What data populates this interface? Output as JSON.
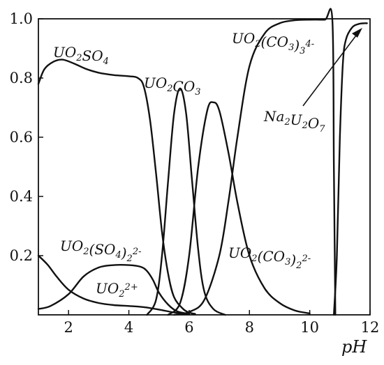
{
  "chart_data": {
    "type": "line",
    "title": "",
    "xlabel": "pH",
    "ylabel": "",
    "xlim": [
      1,
      12
    ],
    "ylim": [
      0,
      1.0
    ],
    "xticks": [
      "2",
      "4",
      "6",
      "8",
      "10",
      "12"
    ],
    "yticks": [
      "0.2",
      "0.4",
      "0.6",
      "0.8",
      "1.0"
    ],
    "grid": false,
    "series": [
      {
        "name": "UO2SO4",
        "x": [
          1.0,
          1.2,
          1.5,
          1.8,
          2.2,
          2.6,
          3.0,
          3.5,
          4.0,
          4.3,
          4.5,
          4.7,
          4.9,
          5.1,
          5.3,
          5.5,
          5.8,
          6.0,
          6.2
        ],
        "values": [
          0.78,
          0.83,
          0.855,
          0.862,
          0.848,
          0.83,
          0.818,
          0.81,
          0.806,
          0.8,
          0.77,
          0.66,
          0.48,
          0.28,
          0.14,
          0.06,
          0.02,
          0.008,
          0.003
        ]
      },
      {
        "name": "UO2(SO4)2 2-",
        "x": [
          1.0,
          1.4,
          2.0,
          2.5,
          3.0,
          3.5,
          4.0,
          4.4,
          4.6,
          4.8,
          5.0,
          5.3,
          5.6,
          6.0
        ],
        "values": [
          0.02,
          0.03,
          0.07,
          0.13,
          0.16,
          0.168,
          0.168,
          0.162,
          0.148,
          0.118,
          0.075,
          0.035,
          0.012,
          0.003
        ]
      },
      {
        "name": "UO2 2+",
        "x": [
          1.0,
          1.3,
          1.6,
          2.0,
          2.5,
          3.0,
          3.5,
          4.0,
          4.5,
          5.0,
          5.5,
          6.0
        ],
        "values": [
          0.2,
          0.17,
          0.13,
          0.085,
          0.055,
          0.04,
          0.033,
          0.03,
          0.026,
          0.018,
          0.008,
          0.002
        ]
      },
      {
        "name": "UO2CO3",
        "x": [
          4.6,
          4.9,
          5.1,
          5.3,
          5.5,
          5.7,
          5.9,
          6.1,
          6.3,
          6.5,
          6.8,
          7.2
        ],
        "values": [
          0.0,
          0.05,
          0.2,
          0.45,
          0.68,
          0.765,
          0.68,
          0.45,
          0.22,
          0.08,
          0.02,
          0.0
        ]
      },
      {
        "name": "UO2(CO3)2 2-",
        "x": [
          5.3,
          5.7,
          6.0,
          6.3,
          6.6,
          6.8,
          7.0,
          7.3,
          7.6,
          8.0,
          8.5,
          9.0,
          9.5,
          10.0
        ],
        "values": [
          0.0,
          0.04,
          0.2,
          0.5,
          0.69,
          0.718,
          0.69,
          0.55,
          0.38,
          0.2,
          0.09,
          0.04,
          0.015,
          0.005
        ]
      },
      {
        "name": "UO2(CO3)3 4-",
        "x": [
          5.5,
          6.0,
          6.5,
          7.0,
          7.3,
          7.6,
          8.0,
          8.5,
          9.0,
          9.5,
          10.0,
          10.5,
          10.75,
          10.8,
          10.85
        ],
        "values": [
          0.0,
          0.01,
          0.05,
          0.2,
          0.38,
          0.6,
          0.84,
          0.95,
          0.985,
          0.995,
          0.997,
          0.997,
          0.997,
          0.5,
          0.0
        ]
      },
      {
        "name": "Na2U2O7",
        "x": [
          10.8,
          10.9,
          11.0,
          11.1,
          11.2,
          11.4,
          11.6,
          11.8,
          11.9
        ],
        "values": [
          0.0,
          0.2,
          0.6,
          0.85,
          0.93,
          0.97,
          0.982,
          0.985,
          0.985
        ]
      }
    ],
    "annotations": {
      "uo2so4": "UO2SO4",
      "uo2so42": "UO2(SO4)2 2-",
      "uo22": "UO2 2+",
      "uo2co3": "UO2CO3",
      "uo2co32": "UO2(CO3)2 2-",
      "uo2co33": "UO2(CO3)3 4-",
      "na2u2o7": "Na2U2O7"
    }
  }
}
